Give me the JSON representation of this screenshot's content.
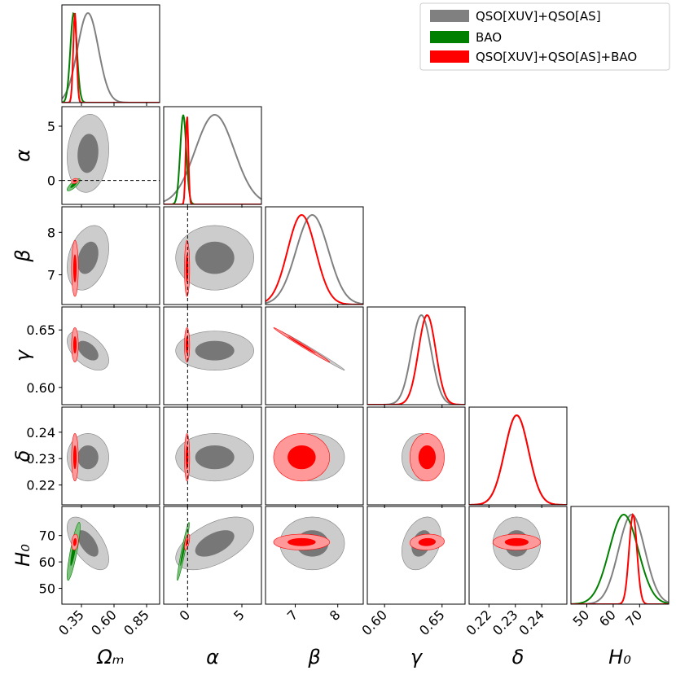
{
  "chart_data": {
    "type": "corner",
    "params": [
      {
        "key": "Om",
        "label": "Ωₘ",
        "ticks": [
          "0.35",
          "0.60",
          "0.85"
        ],
        "tick_values": [
          0.35,
          0.6,
          0.85
        ],
        "range": [
          0.2,
          0.95
        ]
      },
      {
        "key": "alpha",
        "label": "α",
        "ticks": [
          "0",
          "5"
        ],
        "tick_values": [
          0,
          5
        ],
        "range": [
          -2.2,
          6.8
        ]
      },
      {
        "key": "beta",
        "label": "β",
        "ticks": [
          "7",
          "8"
        ],
        "tick_values": [
          7,
          8
        ],
        "range": [
          6.3,
          8.6
        ]
      },
      {
        "key": "gamma",
        "label": "γ",
        "ticks": [
          "0.60",
          "0.65"
        ],
        "tick_values": [
          0.6,
          0.65
        ],
        "range": [
          0.585,
          0.67
        ]
      },
      {
        "key": "delta",
        "label": "δ",
        "ticks": [
          "0.22",
          "0.23",
          "0.24"
        ],
        "tick_values": [
          0.22,
          0.23,
          0.24
        ],
        "range": [
          0.2125,
          0.2495
        ]
      },
      {
        "key": "H0",
        "label": "H₀",
        "ticks": [
          "50",
          "60",
          "70"
        ],
        "tick_values": [
          50,
          60,
          70
        ],
        "range": [
          44,
          81
        ]
      }
    ],
    "series": [
      {
        "name": "QSO[XUV]+QSO[AS]",
        "color": "#808080",
        "fill_outer": "#cccccc",
        "fill_inner": "#777777",
        "means": {
          "Om": 0.4,
          "alpha": 2.5,
          "beta": 7.4,
          "gamma": 0.632,
          "delta": 0.2305,
          "H0": 67
        },
        "sigmas": {
          "Om": 0.08,
          "alpha": 1.8,
          "beta": 0.38,
          "gamma": 0.0085,
          "delta": 0.0045,
          "H0": 5
        }
      },
      {
        "name": "BAO",
        "color": "#008000",
        "fill_outer": "#7fc27f",
        "fill_inner": "#008000",
        "means": {
          "Om": 0.29,
          "alpha": -0.4,
          "H0": 64
        },
        "sigmas": {
          "Om": 0.025,
          "alpha": 0.28,
          "H0": 5.5
        }
      },
      {
        "name": "QSO[XUV]+QSO[AS]+BAO",
        "color": "#ff0000",
        "fill_outer": "#ff9999",
        "fill_inner": "#ff0000",
        "means": {
          "Om": 0.3,
          "alpha": -0.05,
          "beta": 7.15,
          "gamma": 0.637,
          "delta": 0.2305,
          "H0": 67.5
        },
        "sigmas": {
          "Om": 0.013,
          "alpha": 0.12,
          "beta": 0.33,
          "gamma": 0.0075,
          "delta": 0.0045,
          "H0": 1.5
        }
      }
    ],
    "reference_lines": {
      "alpha": 0
    },
    "legend_position": "top-right"
  }
}
